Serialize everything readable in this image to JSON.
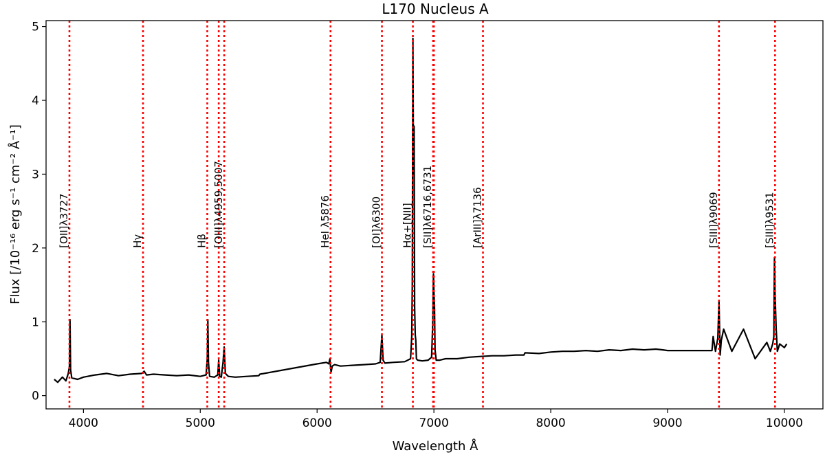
{
  "chart_data": {
    "type": "line",
    "title": "L170 Nucleus A",
    "xlabel": "Wavelength Å",
    "ylabel": "Flux  [/10⁻¹⁶ erg s⁻¹ cm⁻² Å⁻¹]",
    "xlim": [
      3680,
      10330
    ],
    "ylim": [
      -0.18,
      5.08
    ],
    "xticks": [
      4000,
      5000,
      6000,
      7000,
      8000,
      9000,
      10000
    ],
    "yticks": [
      0,
      1,
      2,
      3,
      4,
      5
    ],
    "series": [
      {
        "color": "#000000",
        "x": [
          3750,
          3780,
          3820,
          3850,
          3870,
          3880,
          3885,
          3890,
          3900,
          3950,
          4000,
          4100,
          4200,
          4300,
          4400,
          4500,
          4520,
          4540,
          4600,
          4700,
          4800,
          4900,
          5000,
          5050,
          5060,
          5065,
          5070,
          5080,
          5120,
          5150,
          5158,
          5166,
          5180,
          5195,
          5205,
          5215,
          5240,
          5300,
          5400,
          5500,
          5510,
          6000,
          6080,
          6100,
          6110,
          6115,
          6120,
          6130,
          6150,
          6200,
          6300,
          6400,
          6500,
          6540,
          6555,
          6565,
          6580,
          6650,
          6750,
          6800,
          6810,
          6815,
          6820,
          6825,
          6830,
          6835,
          6840,
          6845,
          6850,
          6860,
          6900,
          6950,
          6980,
          6990,
          6996,
          7000,
          7005,
          7010,
          7020,
          7050,
          7100,
          7200,
          7300,
          7400,
          7500,
          7600,
          7700,
          7770,
          7780,
          7900,
          8000,
          8100,
          8200,
          8300,
          8400,
          8500,
          8600,
          8700,
          8800,
          8900,
          8960,
          9000,
          9380,
          9390,
          9410,
          9430,
          9440,
          9450,
          9460,
          9480,
          9550,
          9650,
          9750,
          9850,
          9880,
          9900,
          9910,
          9915,
          9920,
          9930,
          9940,
          9960,
          10000,
          10020
        ],
        "y": [
          0.22,
          0.18,
          0.25,
          0.2,
          0.3,
          0.4,
          1.03,
          0.35,
          0.24,
          0.22,
          0.25,
          0.28,
          0.3,
          0.27,
          0.29,
          0.3,
          0.33,
          0.28,
          0.29,
          0.28,
          0.27,
          0.28,
          0.26,
          0.28,
          0.5,
          1.03,
          0.45,
          0.26,
          0.25,
          0.28,
          0.48,
          0.26,
          0.25,
          0.45,
          0.66,
          0.3,
          0.26,
          0.25,
          0.26,
          0.27,
          0.29,
          0.43,
          0.45,
          0.43,
          0.5,
          0.38,
          0.32,
          0.4,
          0.42,
          0.4,
          0.41,
          0.42,
          0.43,
          0.45,
          0.82,
          0.48,
          0.44,
          0.45,
          0.46,
          0.5,
          0.8,
          1.5,
          4.84,
          3.0,
          3.65,
          1.2,
          0.82,
          0.75,
          0.5,
          0.48,
          0.47,
          0.48,
          0.52,
          1.0,
          1.65,
          1.4,
          1.2,
          0.62,
          0.48,
          0.48,
          0.5,
          0.5,
          0.52,
          0.53,
          0.54,
          0.54,
          0.55,
          0.55,
          0.58,
          0.57,
          0.59,
          0.6,
          0.6,
          0.61,
          0.6,
          0.62,
          0.61,
          0.63,
          0.62,
          0.63,
          0.62,
          0.61,
          0.61,
          0.8,
          0.6,
          0.78,
          1.28,
          0.55,
          0.75,
          0.9,
          0.6,
          0.9,
          0.5,
          0.72,
          0.6,
          0.7,
          0.8,
          1.87,
          1.4,
          0.9,
          0.6,
          0.7,
          0.65,
          0.7
        ]
      }
    ],
    "lines": [
      {
        "x": 3880,
        "label": "[OII]λ3727"
      },
      {
        "x": 4510,
        "label": "Hγ"
      },
      {
        "x": 5060,
        "label": "Hβ"
      },
      {
        "x": 5158,
        "label": ""
      },
      {
        "x": 5205,
        "label": "[OIII]λ4959,5007"
      },
      {
        "x": 6115,
        "label": "HeI λ5876"
      },
      {
        "x": 6555,
        "label": "[OI]λ6300"
      },
      {
        "x": 6820,
        "label": "Hα+[NII]"
      },
      {
        "x": 6993,
        "label": "[SII]λ6716,6731"
      },
      {
        "x": 7000,
        "label": ""
      },
      {
        "x": 7420,
        "label": "[ArIII]λ7136"
      },
      {
        "x": 9440,
        "label": "[SIII]λ9069"
      },
      {
        "x": 9920,
        "label": "[SIII]λ9531"
      }
    ],
    "line_color": "#ff0000",
    "grid": false
  }
}
